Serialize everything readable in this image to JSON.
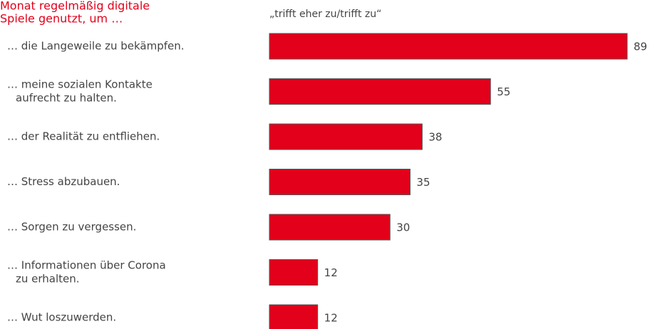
{
  "chart_data": {
    "type": "bar",
    "title": [
      "Monat regelmäßig digitale",
      "Spiele genutzt, um …"
    ],
    "subtitle": "„trifft eher zu/trifft zu“",
    "categories": [
      [
        "… die Langeweile zu bekämpfen."
      ],
      [
        "… meine sozialen Kontakte",
        "aufrecht zu halten."
      ],
      [
        "… der Realität zu entfliehen."
      ],
      [
        "… Stress abzubauen."
      ],
      [
        "… Sorgen zu vergessen."
      ],
      [
        "… Informationen über Corona",
        "zu erhalten."
      ],
      [
        "… Wut loszuwerden."
      ]
    ],
    "values": [
      89,
      55,
      38,
      35,
      30,
      12,
      12
    ],
    "color": "#e2001a"
  }
}
